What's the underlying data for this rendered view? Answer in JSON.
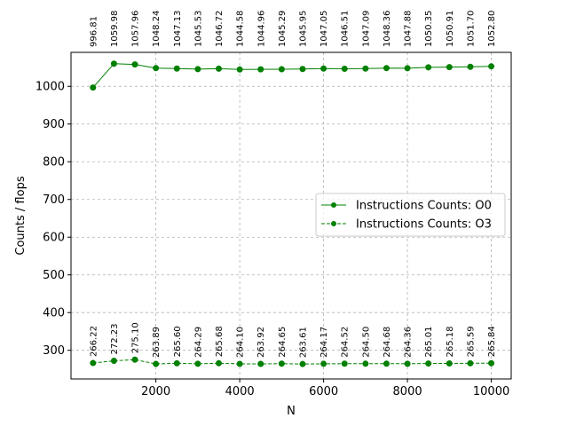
{
  "chart_data": {
    "type": "line",
    "title": "",
    "xlabel": "N",
    "ylabel": "Counts / flops",
    "x": [
      500,
      1000,
      1500,
      2000,
      2500,
      3000,
      3500,
      4000,
      4500,
      5000,
      5500,
      6000,
      6500,
      7000,
      7500,
      8000,
      8500,
      9000,
      9500,
      10000
    ],
    "xlim": [
      -25,
      10475
    ],
    "ylim": [
      224,
      1090
    ],
    "xticks": [
      2000,
      4000,
      6000,
      8000,
      10000
    ],
    "yticks": [
      300,
      400,
      500,
      600,
      700,
      800,
      900,
      1000
    ],
    "xtick_labels": [
      "2000",
      "4000",
      "6000",
      "8000",
      "10000"
    ],
    "ytick_labels": [
      "300",
      "400",
      "500",
      "600",
      "700",
      "800",
      "900",
      "1000"
    ],
    "grid": true,
    "legend_position": "center-right",
    "series": [
      {
        "name": "Instructions Counts: O0",
        "line_style": "solid",
        "marker": "circle",
        "color": "#008000",
        "label_position": "top-axis",
        "values": [
          996.81,
          1059.98,
          1057.96,
          1048.24,
          1047.13,
          1045.53,
          1046.72,
          1044.58,
          1044.96,
          1045.29,
          1045.95,
          1047.05,
          1046.51,
          1047.09,
          1048.36,
          1047.88,
          1050.35,
          1050.91,
          1051.7,
          1052.8
        ],
        "labels": [
          "996.81",
          "1059.98",
          "1057.96",
          "1048.24",
          "1047.13",
          "1045.53",
          "1046.72",
          "1044.58",
          "1044.96",
          "1045.29",
          "1045.95",
          "1047.05",
          "1046.51",
          "1047.09",
          "1048.36",
          "1047.88",
          "1050.35",
          "1050.91",
          "1051.70",
          "1052.80"
        ]
      },
      {
        "name": "Instructions Counts: O3",
        "line_style": "dashed",
        "marker": "circle",
        "color": "#008000",
        "label_position": "above-point",
        "values": [
          266.22,
          272.23,
          275.1,
          263.89,
          265.6,
          264.29,
          265.68,
          264.1,
          263.92,
          264.65,
          263.61,
          264.17,
          264.52,
          264.5,
          264.68,
          264.36,
          265.01,
          265.18,
          265.59,
          265.84
        ],
        "labels": [
          "266.22",
          "272.23",
          "275.10",
          "263.89",
          "265.60",
          "264.29",
          "265.68",
          "264.10",
          "263.92",
          "264.65",
          "263.61",
          "264.17",
          "264.52",
          "264.50",
          "264.68",
          "264.36",
          "265.01",
          "265.18",
          "265.59",
          "265.84"
        ]
      }
    ]
  }
}
